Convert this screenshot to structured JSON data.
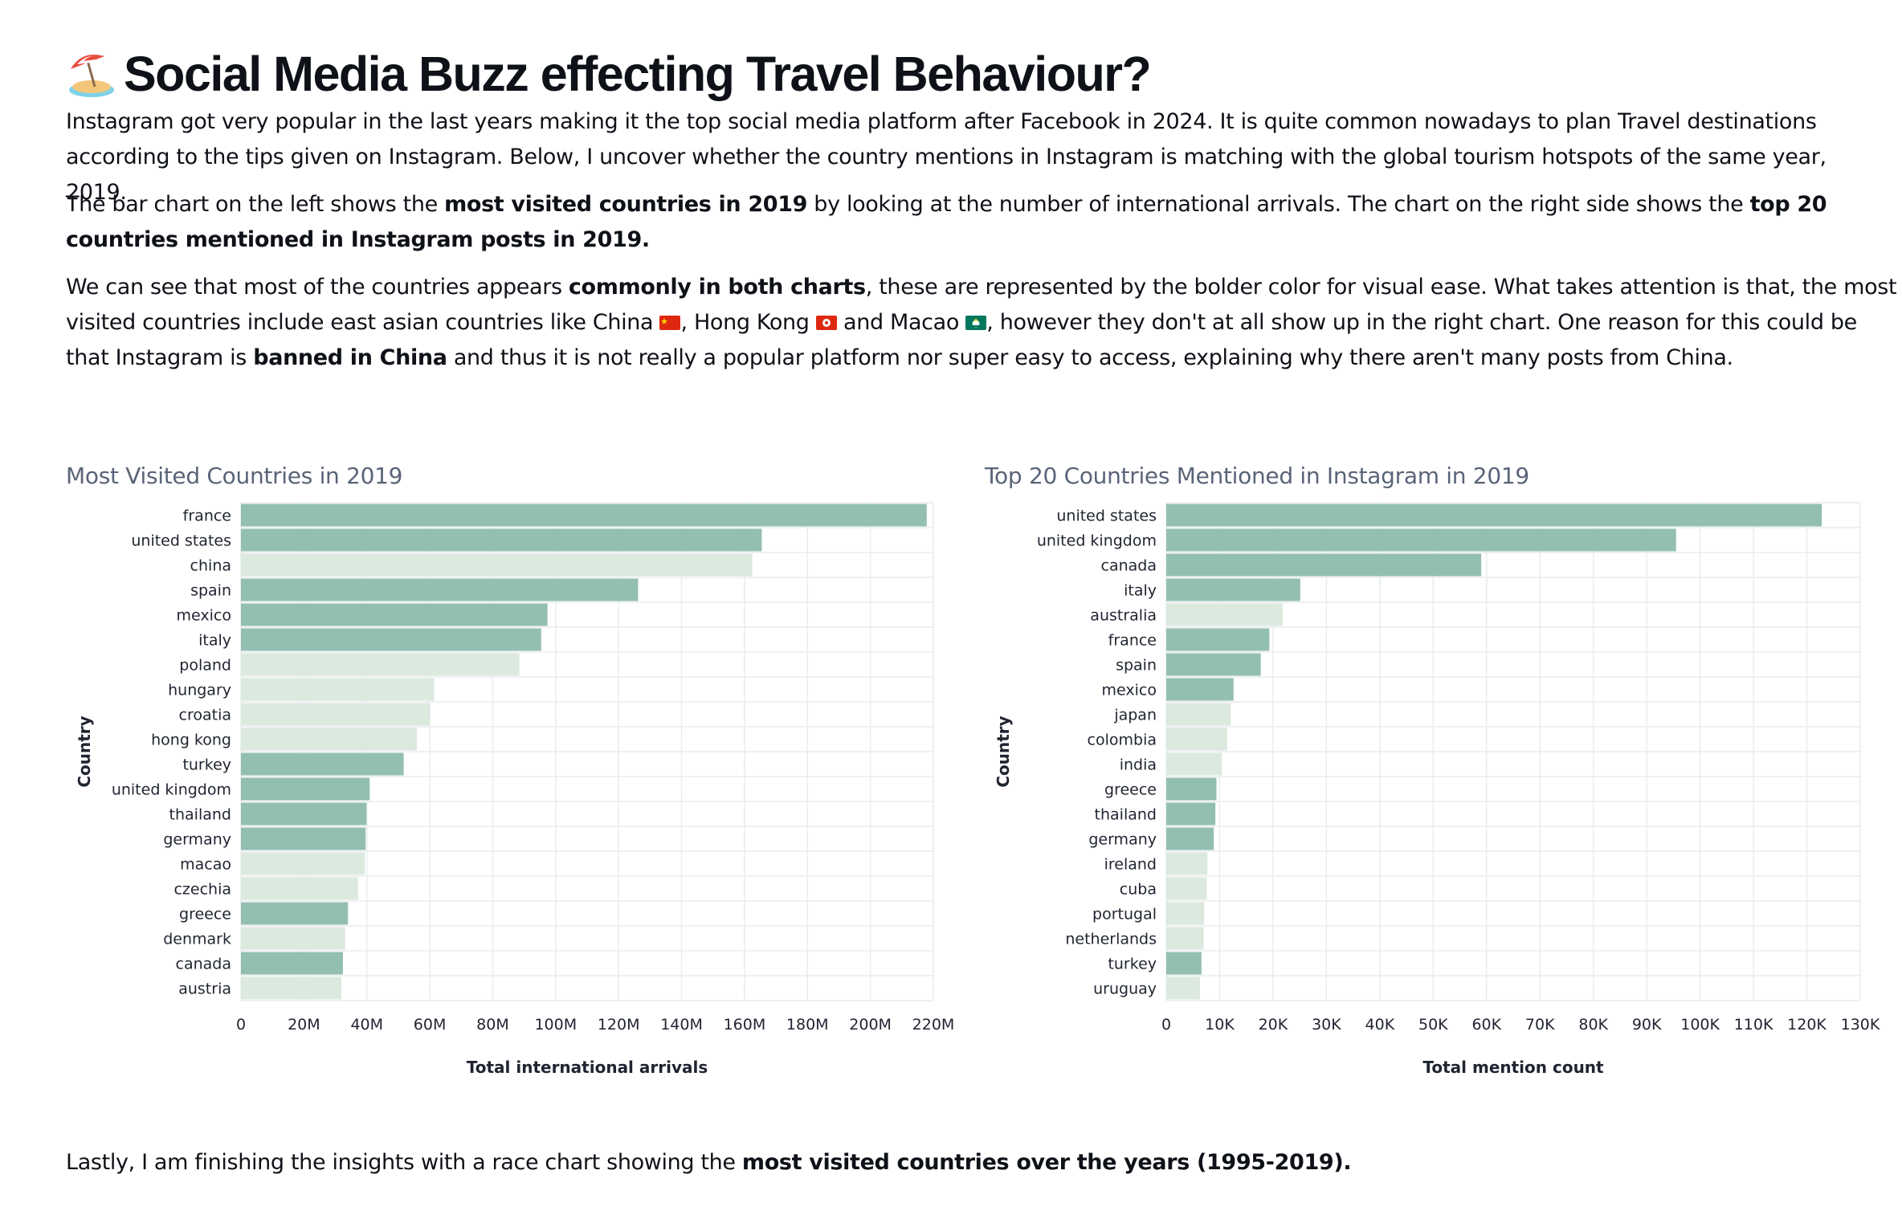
{
  "page": {
    "title_emoji": "beach-umbrella-icon",
    "title": "Social Media Buzz effecting Travel Behaviour?",
    "p1": "Instagram got very popular in the last years making it the top social media platform after Facebook in 2024. It is quite common nowadays to plan Travel destinations according to the tips given on Instagram. Below, I uncover whether the country mentions in Instagram is matching with the global tourism hotspots of the same year, 2019.",
    "p2": {
      "a": "The bar chart on the left shows the ",
      "b": "most visited countries in 2019",
      "c": " by looking at the number of international arrivals. The chart on the right side shows the ",
      "d": "top 20 countries mentioned in Instagram posts in 2019."
    },
    "p3": {
      "a": "We can see that most of the countries appears ",
      "b": "commonly in both charts",
      "c": ", these are represented by the bolder color for visual ease. What takes attention is that, the most visited countries include east asian countries like China ",
      "d": ", Hong Kong ",
      "e": " and Macao ",
      "f": ", however they don't at all show up in the right chart. One reason for this could be that Instagram is ",
      "g": "banned in China",
      "h": " and thus it is not really a popular platform nor super easy to access, explaining why there aren't many posts from China."
    },
    "p4": {
      "a": "Lastly, I am finishing the insights with a race chart showing the ",
      "b": "most visited countries over the years (1995-2019)."
    }
  },
  "colors": {
    "common": "#93bfb0",
    "unique": "#dce9de",
    "grid": "#e9ecef"
  },
  "chart_data": [
    {
      "type": "bar",
      "orientation": "horizontal",
      "title": "Most Visited Countries in 2019",
      "xlabel": "Total international arrivals",
      "ylabel": "Country",
      "xlim": [
        0,
        220000000
      ],
      "xticks": [
        0,
        20000000,
        40000000,
        60000000,
        80000000,
        100000000,
        120000000,
        140000000,
        160000000,
        180000000,
        200000000,
        220000000
      ],
      "xtick_labels": [
        "0",
        "20M",
        "40M",
        "60M",
        "80M",
        "100M",
        "120M",
        "140M",
        "160M",
        "180M",
        "200M",
        "220M"
      ],
      "grid": true,
      "categories": [
        "france",
        "united states",
        "china",
        "spain",
        "mexico",
        "italy",
        "poland",
        "hungary",
        "croatia",
        "hong kong",
        "turkey",
        "united kingdom",
        "thailand",
        "germany",
        "macao",
        "czechia",
        "greece",
        "denmark",
        "canada",
        "austria"
      ],
      "values": [
        217900000,
        165500000,
        162500000,
        126200000,
        97400000,
        95400000,
        88500000,
        61400000,
        60000000,
        55900000,
        51700000,
        40900000,
        39900000,
        39600000,
        39400000,
        37200000,
        34000000,
        33100000,
        32400000,
        31900000
      ],
      "common_in_both": [
        true,
        true,
        false,
        true,
        true,
        true,
        false,
        false,
        false,
        false,
        true,
        true,
        true,
        true,
        false,
        false,
        true,
        false,
        true,
        false
      ]
    },
    {
      "type": "bar",
      "orientation": "horizontal",
      "title": "Top 20 Countries Mentioned in Instagram in 2019",
      "xlabel": "Total mention count",
      "ylabel": "Country",
      "xlim": [
        0,
        130000
      ],
      "xticks": [
        0,
        10000,
        20000,
        30000,
        40000,
        50000,
        60000,
        70000,
        80000,
        90000,
        100000,
        110000,
        120000,
        130000
      ],
      "xtick_labels": [
        "0",
        "10K",
        "20K",
        "30K",
        "40K",
        "50K",
        "60K",
        "70K",
        "80K",
        "90K",
        "100K",
        "110K",
        "120K",
        "130K"
      ],
      "grid": true,
      "categories": [
        "united states",
        "united kingdom",
        "canada",
        "italy",
        "australia",
        "france",
        "spain",
        "mexico",
        "japan",
        "colombia",
        "india",
        "greece",
        "thailand",
        "germany",
        "ireland",
        "cuba",
        "portugal",
        "netherlands",
        "turkey",
        "uruguay"
      ],
      "values": [
        122800,
        95500,
        59000,
        25100,
        21800,
        19300,
        17700,
        12600,
        12100,
        11400,
        10400,
        9400,
        9200,
        8900,
        7700,
        7600,
        7100,
        7000,
        6600,
        6300
      ],
      "common_in_both": [
        true,
        true,
        true,
        true,
        false,
        true,
        true,
        true,
        false,
        false,
        false,
        true,
        true,
        true,
        false,
        false,
        false,
        false,
        true,
        false
      ]
    }
  ]
}
